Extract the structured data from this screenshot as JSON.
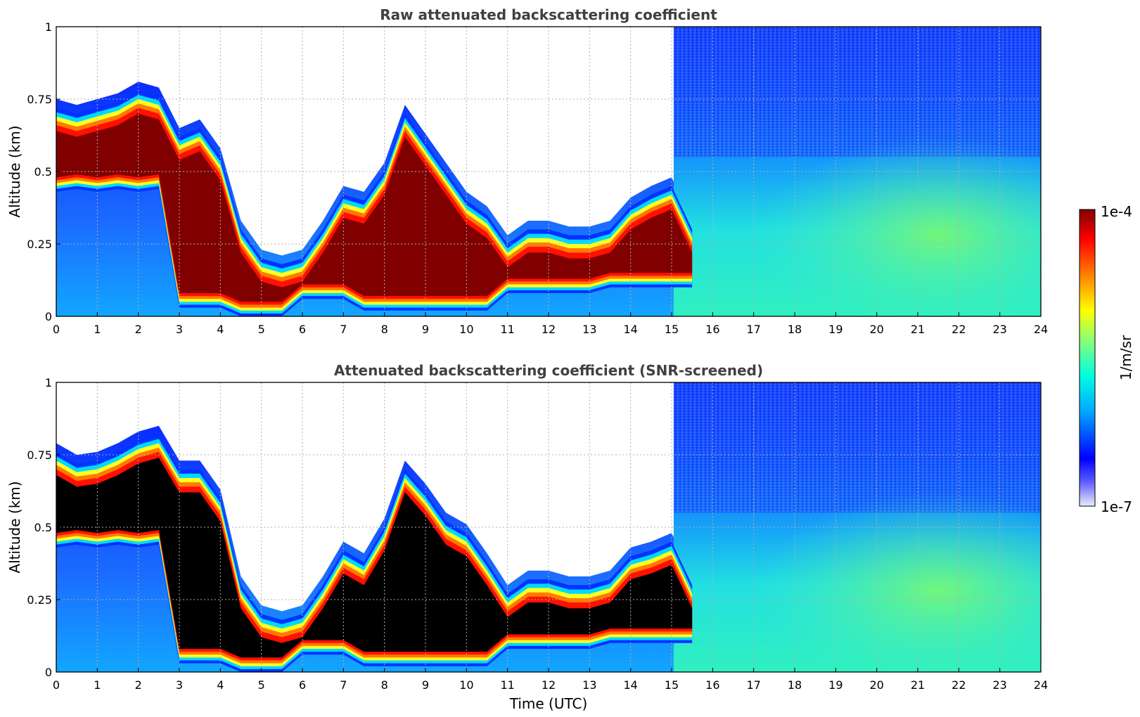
{
  "chart_data": [
    {
      "type": "heatmap",
      "title": "Raw attenuated backscattering coefficient",
      "xlabel": "",
      "ylabel": "Altitude (km)",
      "xlim": [
        0,
        24
      ],
      "ylim": [
        0,
        1
      ],
      "x_ticks": [
        "0",
        "1",
        "2",
        "3",
        "4",
        "5",
        "6",
        "7",
        "8",
        "9",
        "10",
        "11",
        "12",
        "13",
        "14",
        "15",
        "16",
        "17",
        "18",
        "19",
        "20",
        "21",
        "22",
        "23",
        "24"
      ],
      "y_ticks": [
        "0",
        "0.25",
        "0.5",
        "0.75",
        "1"
      ],
      "grid": true,
      "screened": false,
      "boundary_layer_top_km": {
        "x": [
          0,
          0.5,
          1,
          1.5,
          2,
          2.5,
          3,
          3.5,
          4,
          4.5,
          5,
          5.5,
          6,
          6.5,
          7,
          7.5,
          8,
          8.5,
          9,
          9.5,
          10,
          10.5,
          11,
          11.5,
          12,
          12.5,
          13,
          13.5,
          14,
          14.5,
          15,
          15.5
        ],
        "y": [
          0.72,
          0.7,
          0.72,
          0.74,
          0.78,
          0.76,
          0.62,
          0.65,
          0.55,
          0.3,
          0.2,
          0.18,
          0.2,
          0.3,
          0.42,
          0.4,
          0.5,
          0.7,
          0.6,
          0.5,
          0.4,
          0.35,
          0.25,
          0.3,
          0.3,
          0.28,
          0.28,
          0.3,
          0.38,
          0.42,
          0.45,
          0.3
        ]
      }
    },
    {
      "type": "heatmap",
      "title": "Attenuated backscattering coefficient (SNR-screened)",
      "xlabel": "Time (UTC)",
      "ylabel": "Altitude (km)",
      "xlim": [
        0,
        24
      ],
      "ylim": [
        0,
        1
      ],
      "x_ticks": [
        "0",
        "1",
        "2",
        "3",
        "4",
        "5",
        "6",
        "7",
        "8",
        "9",
        "10",
        "11",
        "12",
        "13",
        "14",
        "15",
        "16",
        "17",
        "18",
        "19",
        "20",
        "21",
        "22",
        "23",
        "24"
      ],
      "y_ticks": [
        "0",
        "0.25",
        "0.5",
        "0.75",
        "1"
      ],
      "grid": true,
      "screened": true,
      "boundary_layer_top_km": {
        "x": [
          0,
          0.5,
          1,
          1.5,
          2,
          2.5,
          3,
          3.5,
          4,
          4.5,
          5,
          5.5,
          6,
          6.5,
          7,
          7.5,
          8,
          8.5,
          9,
          9.5,
          10,
          10.5,
          11,
          11.5,
          12,
          12.5,
          13,
          13.5,
          14,
          14.5,
          15,
          15.5
        ],
        "y": [
          0.76,
          0.72,
          0.73,
          0.76,
          0.8,
          0.82,
          0.7,
          0.7,
          0.6,
          0.3,
          0.2,
          0.18,
          0.2,
          0.3,
          0.42,
          0.38,
          0.5,
          0.7,
          0.62,
          0.52,
          0.48,
          0.38,
          0.27,
          0.32,
          0.32,
          0.3,
          0.3,
          0.32,
          0.4,
          0.42,
          0.45,
          0.3
        ]
      }
    }
  ],
  "colorbar": {
    "label": "1/m/sr",
    "max_label": "1e-4",
    "min_label": "1e-7",
    "scale": "log",
    "range": [
      1e-07,
      0.0001
    ],
    "colormap": [
      "#ececf8",
      "#0000ff",
      "#00a8ff",
      "#00ffe0",
      "#80ff80",
      "#ffff00",
      "#ff8000",
      "#ff0000",
      "#800000"
    ]
  }
}
